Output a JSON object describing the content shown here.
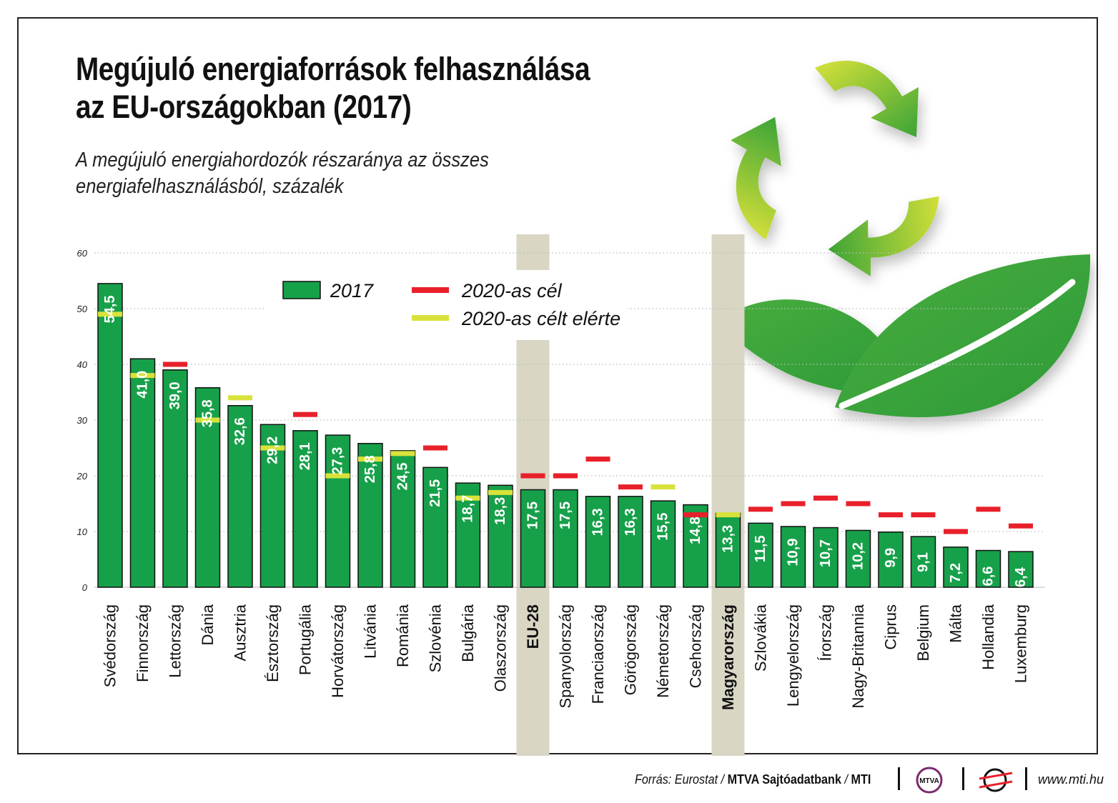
{
  "title_line1": "Megújuló energiaforrások felhasználása",
  "title_line2": "az EU-országokban (2017)",
  "subtitle_line1": "A megújuló energiahordozók részaránya az összes",
  "subtitle_line2": "energiafelhasználásból, százalék",
  "legend": {
    "item_2017": "2017",
    "item_target": "2020-as cél",
    "item_reached": "2020-as célt elérte"
  },
  "colors": {
    "bar": "#17a04a",
    "target": "#e8202a",
    "reached": "#d8e23a",
    "highlight": "#d9d6c4",
    "grid": "#bdbdbd"
  },
  "chart_data": {
    "type": "bar",
    "ylim": [
      0,
      60
    ],
    "yticks": [
      0,
      10,
      20,
      30,
      40,
      50,
      60
    ],
    "grid": true,
    "legend_position": "top-left",
    "categories": [
      "Svédország",
      "Finnország",
      "Lettország",
      "Dánia",
      "Ausztria",
      "Észtország",
      "Portugália",
      "Horvátország",
      "Litvánia",
      "Románia",
      "Szlovénia",
      "Bulgária",
      "Olaszország",
      "EU-28",
      "Spanyolország",
      "Franciaország",
      "Görögország",
      "Németország",
      "Csehország",
      "Magyarország",
      "Szlovákia",
      "Lengyelország",
      "Írország",
      "Nagy-Britannia",
      "Ciprus",
      "Belgium",
      "Málta",
      "Hollandia",
      "Luxemburg"
    ],
    "value_labels": [
      "54,5",
      "41,0",
      "39,0",
      "35,8",
      "32,6",
      "29,2",
      "28,1",
      "27,3",
      "25,8",
      "24,5",
      "21,5",
      "18,7",
      "18,3",
      "17,5",
      "17,5",
      "16,3",
      "16,3",
      "15,5",
      "14,8",
      "13,3",
      "11,5",
      "10,9",
      "10,7",
      "10,2",
      "9,9",
      "9,1",
      "7,2",
      "6,6",
      "6,4"
    ],
    "series": [
      {
        "name": "2017",
        "values": [
          54.5,
          41.0,
          39.0,
          35.8,
          32.6,
          29.2,
          28.1,
          27.3,
          25.8,
          24.5,
          21.5,
          18.7,
          18.3,
          17.5,
          17.5,
          16.3,
          16.3,
          15.5,
          14.8,
          13.3,
          11.5,
          10.9,
          10.7,
          10.2,
          9.9,
          9.1,
          7.2,
          6.6,
          6.4
        ]
      },
      {
        "name": "2020-as cél",
        "values": [
          49,
          38,
          40,
          30,
          34,
          25,
          31,
          20,
          23,
          24,
          25,
          16,
          17,
          20,
          20,
          23,
          18,
          18,
          13,
          13,
          14,
          15,
          16,
          15,
          13,
          13,
          10,
          14,
          11
        ]
      }
    ],
    "target_reached": [
      true,
      true,
      false,
      true,
      true,
      true,
      false,
      true,
      true,
      true,
      false,
      true,
      true,
      false,
      false,
      false,
      false,
      true,
      false,
      true,
      false,
      false,
      false,
      false,
      false,
      false,
      false,
      false,
      false
    ],
    "highlighted": [
      "EU-28",
      "Magyarország"
    ]
  },
  "footer": {
    "source_prefix": "Forrás: Eurostat / ",
    "source_bold": "MTVA Sajtóadatbank",
    "source_mid": " / ",
    "source_bold2": "MTI",
    "url": "www.mti.hu",
    "logo1_text": "MTVA"
  }
}
